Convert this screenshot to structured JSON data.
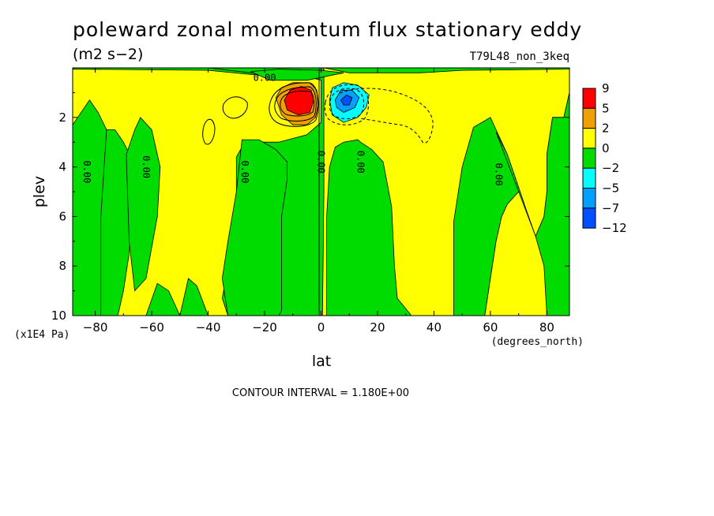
{
  "chart_data": {
    "type": "contour",
    "title": "poleward zonal momentum flux stationary eddy",
    "units": "(m2 s−2)",
    "case_label": "T79L48_non_3keq",
    "xlabel": "lat",
    "x_units": "(degrees_north)",
    "ylabel": "plev",
    "y_units": "(x1E4 Pa)",
    "x_ticks": [
      "−80",
      "−60",
      "−40",
      "−20",
      "0",
      "20",
      "40",
      "60",
      "80"
    ],
    "y_ticks": [
      "2",
      "4",
      "6",
      "8",
      "10"
    ],
    "xlim": [
      -88,
      88
    ],
    "ylim": [
      10,
      0
    ],
    "contour_interval_text": "CONTOUR INTERVAL = 1.180E+00",
    "contour_labels": [
      "0.00",
      "0.00",
      "0.00",
      "0.00",
      "0.00",
      "0.00",
      "0.00"
    ],
    "legend": {
      "position": "right",
      "levels": [
        "9",
        "5",
        "2",
        "0",
        "−2",
        "−5",
        "−7",
        "−12"
      ],
      "colors": [
        "#ff0000",
        "#f0a000",
        "#ffff00",
        "#00dc00",
        "#00ffff",
        "#00a0ff",
        "#0050ff"
      ]
    },
    "colors": {
      "positive_high": "#ff0000",
      "positive_mid": "#f0a000",
      "positive_low": "#ffff00",
      "negative_low": "#00dc00",
      "negative_mid": "#00ffff",
      "negative_high": "#00a0ff",
      "negative_max": "#0050ff"
    },
    "features": {
      "positive_max_lat": -8,
      "positive_max_plev": 1.3,
      "negative_min_lat": 8,
      "negative_min_plev": 1.3
    },
    "regions": [
      {
        "sign": "negative",
        "color": "#00dc00",
        "desc": "background field",
        "poly": [
          [
            -88,
            0
          ],
          [
            88,
            0
          ],
          [
            88,
            10
          ],
          [
            -88,
            10
          ]
        ]
      },
      {
        "sign": "positive",
        "color": "#ffff00",
        "poly": [
          [
            -88,
            0.05
          ],
          [
            -40,
            0.1
          ],
          [
            -22,
            0.3
          ],
          [
            -5,
            0.35
          ],
          [
            0,
            0.5
          ],
          [
            0,
            2.2
          ],
          [
            -5,
            2.7
          ],
          [
            -15,
            3.0
          ],
          [
            -27,
            3.0
          ],
          [
            -30,
            3.6
          ],
          [
            -30,
            6.5
          ],
          [
            -33,
            8.0
          ],
          [
            -35,
            9.3
          ],
          [
            -33,
            10
          ],
          [
            -50,
            10
          ],
          [
            -54,
            9.0
          ],
          [
            -58,
            8.7
          ],
          [
            -62,
            10
          ],
          [
            -72,
            10
          ],
          [
            -70,
            9.0
          ],
          [
            -68,
            7.5
          ],
          [
            -67,
            5.2
          ],
          [
            -66,
            3.9
          ],
          [
            -70,
            3.0
          ],
          [
            -73,
            2.5
          ],
          [
            -78,
            2.5
          ],
          [
            -80,
            3.2
          ],
          [
            -83,
            3.4
          ],
          [
            -88,
            3.0
          ]
        ]
      },
      {
        "sign": "negative",
        "color": "#00dc00",
        "poly": [
          [
            -88,
            2.3
          ],
          [
            -82,
            1.3
          ],
          [
            -79,
            1.8
          ],
          [
            -76,
            2.5
          ],
          [
            -78,
            6.0
          ],
          [
            -78,
            10
          ],
          [
            -88,
            10
          ]
        ]
      },
      {
        "sign": "negative",
        "color": "#00dc00",
        "poly": [
          [
            -66,
            2.5
          ],
          [
            -64,
            2.0
          ],
          [
            -60,
            2.5
          ],
          [
            -57,
            4.0
          ],
          [
            -58,
            6.0
          ],
          [
            -62,
            8.5
          ],
          [
            -66,
            9.0
          ],
          [
            -68,
            7.0
          ],
          [
            -69,
            3.5
          ]
        ]
      },
      {
        "sign": "negative",
        "color": "#00dc00",
        "poly": [
          [
            -50,
            10
          ],
          [
            -47,
            8.5
          ],
          [
            -44,
            8.8
          ],
          [
            -40,
            10
          ]
        ]
      },
      {
        "sign": "negative",
        "color": "#00dc00",
        "poly": [
          [
            -28,
            2.9
          ],
          [
            -22,
            2.9
          ],
          [
            -16,
            3.3
          ],
          [
            -12,
            3.8
          ],
          [
            -12,
            4.5
          ],
          [
            -14,
            6.0
          ],
          [
            -14,
            9.8
          ],
          [
            -15,
            10
          ],
          [
            -33,
            10
          ],
          [
            -35,
            8.5
          ],
          [
            -33,
            7.0
          ],
          [
            -30,
            5.0
          ]
        ]
      },
      {
        "sign": "positive",
        "color": "#ffff00",
        "poly": [
          [
            1,
            0
          ],
          [
            88,
            0
          ],
          [
            88,
            1.0
          ],
          [
            86,
            2.0
          ],
          [
            82,
            2.0
          ],
          [
            80,
            3.5
          ],
          [
            80,
            5.0
          ],
          [
            79,
            6.0
          ],
          [
            76,
            6.8
          ],
          [
            74,
            6.5
          ],
          [
            72,
            5.5
          ],
          [
            66,
            3.5
          ],
          [
            62,
            2.5
          ],
          [
            60,
            2.0
          ],
          [
            54,
            2.4
          ],
          [
            50,
            4.0
          ],
          [
            47,
            6.2
          ],
          [
            47,
            10
          ],
          [
            32,
            10
          ],
          [
            27,
            9.3
          ],
          [
            26,
            8.0
          ],
          [
            25,
            5.6
          ],
          [
            22,
            3.8
          ],
          [
            18,
            3.3
          ],
          [
            14,
            3.0
          ],
          [
            13,
            2.9
          ],
          [
            8,
            3.0
          ],
          [
            5,
            3.2
          ],
          [
            3,
            4.0
          ],
          [
            2,
            6.0
          ],
          [
            2,
            10
          ],
          [
            0.5,
            10
          ],
          [
            1,
            5.0
          ],
          [
            1,
            3.0
          ]
        ]
      },
      {
        "sign": "negative",
        "color": "#00dc00",
        "poly": [
          [
            62,
            2.6
          ],
          [
            66,
            3.5
          ],
          [
            72,
            5.5
          ],
          [
            76,
            6.8
          ],
          [
            79,
            6.0
          ],
          [
            80,
            5.0
          ],
          [
            80,
            3.5
          ],
          [
            82,
            2.0
          ],
          [
            86,
            2.0
          ],
          [
            88,
            1.0
          ],
          [
            88,
            10
          ],
          [
            58,
            10
          ],
          [
            60,
            8.5
          ],
          [
            62,
            7.0
          ],
          [
            64,
            6.0
          ],
          [
            66,
            5.5
          ],
          [
            70,
            5.0
          ]
        ]
      },
      {
        "sign": "positive",
        "color": "#ffff00",
        "poly": [
          [
            58,
            10
          ],
          [
            60,
            8.5
          ],
          [
            62,
            7.0
          ],
          [
            64,
            6.0
          ],
          [
            66,
            5.5
          ],
          [
            70,
            5.0
          ],
          [
            76,
            6.8
          ],
          [
            79,
            8.0
          ],
          [
            80,
            10
          ]
        ]
      },
      {
        "sign": "negative",
        "color": "#00dc00",
        "poly": [
          [
            -88,
            0
          ],
          [
            -40,
            0
          ],
          [
            -25,
            0.2
          ],
          [
            -12,
            0.4
          ],
          [
            -4,
            0.4
          ],
          [
            0,
            0.4
          ],
          [
            1,
            0
          ],
          [
            10,
            0.2
          ],
          [
            35,
            0.2
          ],
          [
            50,
            0.1
          ],
          [
            88,
            0.05
          ],
          [
            88,
            0
          ],
          [
            -88,
            0
          ]
        ]
      },
      {
        "sign": "negative",
        "color": "#00dc00",
        "poly": [
          [
            -25,
            0.15
          ],
          [
            -15,
            0.05
          ],
          [
            0,
            0.1
          ],
          [
            8,
            0.2
          ],
          [
            -5,
            0.5
          ],
          [
            -18,
            0.5
          ]
        ]
      },
      {
        "sign": "positive",
        "color": "#f0a000",
        "poly": [
          [
            -16,
            1.2
          ],
          [
            -14,
            0.8
          ],
          [
            -10,
            0.6
          ],
          [
            -4,
            0.6
          ],
          [
            -1.5,
            0.9
          ],
          [
            -1,
            1.5
          ],
          [
            -2,
            2.0
          ],
          [
            -5,
            2.3
          ],
          [
            -10,
            2.3
          ],
          [
            -14,
            1.9
          ]
        ]
      },
      {
        "sign": "positive",
        "color": "#ff0000",
        "poly": [
          [
            -13,
            1.3
          ],
          [
            -11,
            0.9
          ],
          [
            -7,
            0.75
          ],
          [
            -3.5,
            0.9
          ],
          [
            -2.8,
            1.4
          ],
          [
            -4,
            1.8
          ],
          [
            -8,
            1.9
          ],
          [
            -12,
            1.7
          ]
        ]
      },
      {
        "sign": "negative",
        "color": "#00ffff",
        "poly": [
          [
            3,
            1.3
          ],
          [
            4,
            0.8
          ],
          [
            8,
            0.6
          ],
          [
            13,
            0.7
          ],
          [
            17,
            1.1
          ],
          [
            16,
            1.6
          ],
          [
            13,
            2.0
          ],
          [
            8,
            2.2
          ],
          [
            4,
            1.9
          ]
        ]
      },
      {
        "sign": "negative",
        "color": "#00a0ff",
        "poly": [
          [
            5,
            1.3
          ],
          [
            7,
            0.9
          ],
          [
            11,
            0.9
          ],
          [
            13.5,
            1.2
          ],
          [
            12,
            1.6
          ],
          [
            8,
            1.8
          ],
          [
            5.5,
            1.6
          ]
        ]
      },
      {
        "sign": "negative",
        "color": "#0050ff",
        "poly": [
          [
            7,
            1.3
          ],
          [
            9,
            1.1
          ],
          [
            11,
            1.2
          ],
          [
            10,
            1.5
          ],
          [
            8,
            1.5
          ]
        ]
      }
    ]
  }
}
